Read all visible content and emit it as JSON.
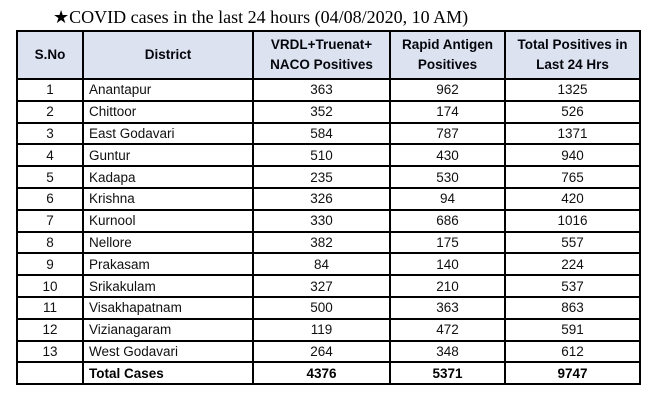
{
  "title": "★COVID cases in the last 24 hours (04/08/2020, 10 AM)",
  "colors": {
    "header_bg": "#dce2f0",
    "border": "#000000",
    "body_bg": "#ffffff",
    "text": "#101010"
  },
  "table": {
    "headers": [
      "S.No",
      "District",
      "VRDL+Truenat+\nNACO Positives",
      "Rapid Antigen\nPositives",
      "Total Positives in\nLast 24 Hrs"
    ],
    "rows": [
      {
        "sno": "1",
        "district": "Anantapur",
        "vrdl": "363",
        "rapid": "962",
        "total": "1325"
      },
      {
        "sno": "2",
        "district": "Chittoor",
        "vrdl": "352",
        "rapid": "174",
        "total": "526"
      },
      {
        "sno": "3",
        "district": "East Godavari",
        "vrdl": "584",
        "rapid": "787",
        "total": "1371"
      },
      {
        "sno": "4",
        "district": "Guntur",
        "vrdl": "510",
        "rapid": "430",
        "total": "940"
      },
      {
        "sno": "5",
        "district": "Kadapa",
        "vrdl": "235",
        "rapid": "530",
        "total": "765"
      },
      {
        "sno": "6",
        "district": "Krishna",
        "vrdl": "326",
        "rapid": "94",
        "total": "420"
      },
      {
        "sno": "7",
        "district": "Kurnool",
        "vrdl": "330",
        "rapid": "686",
        "total": "1016"
      },
      {
        "sno": "8",
        "district": "Nellore",
        "vrdl": "382",
        "rapid": "175",
        "total": "557"
      },
      {
        "sno": "9",
        "district": "Prakasam",
        "vrdl": "84",
        "rapid": "140",
        "total": "224"
      },
      {
        "sno": "10",
        "district": "Srikakulam",
        "vrdl": "327",
        "rapid": "210",
        "total": "537"
      },
      {
        "sno": "11",
        "district": "Visakhapatnam",
        "vrdl": "500",
        "rapid": "363",
        "total": "863"
      },
      {
        "sno": "12",
        "district": "Vizianagaram",
        "vrdl": "119",
        "rapid": "472",
        "total": "591"
      },
      {
        "sno": "13",
        "district": "West Godavari",
        "vrdl": "264",
        "rapid": "348",
        "total": "612"
      }
    ],
    "total_row": {
      "sno": "",
      "label": "Total Cases",
      "vrdl": "4376",
      "rapid": "5371",
      "total": "9747"
    }
  }
}
